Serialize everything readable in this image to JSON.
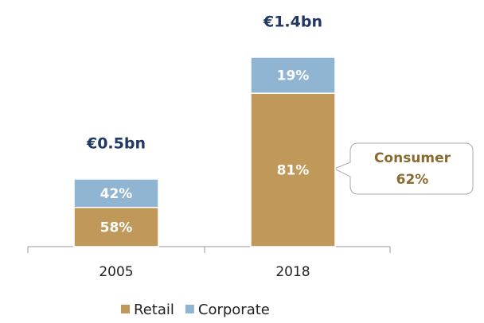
{
  "chart_data": {
    "type": "bar",
    "categories": [
      "2005",
      "2018"
    ],
    "totals": [
      0.5,
      1.4
    ],
    "total_labels": [
      "€0.5bn",
      "€1.4bn"
    ],
    "series": [
      {
        "name": "Retail",
        "color": "#c0985a",
        "values": [
          58,
          81
        ],
        "value_labels": [
          "58%",
          "81%"
        ]
      },
      {
        "name": "Corporate",
        "color": "#8fb5d3",
        "values": [
          42,
          19
        ],
        "value_labels": [
          "42%",
          "19%"
        ]
      }
    ],
    "annotation": [
      "Consumer",
      "62%"
    ]
  }
}
